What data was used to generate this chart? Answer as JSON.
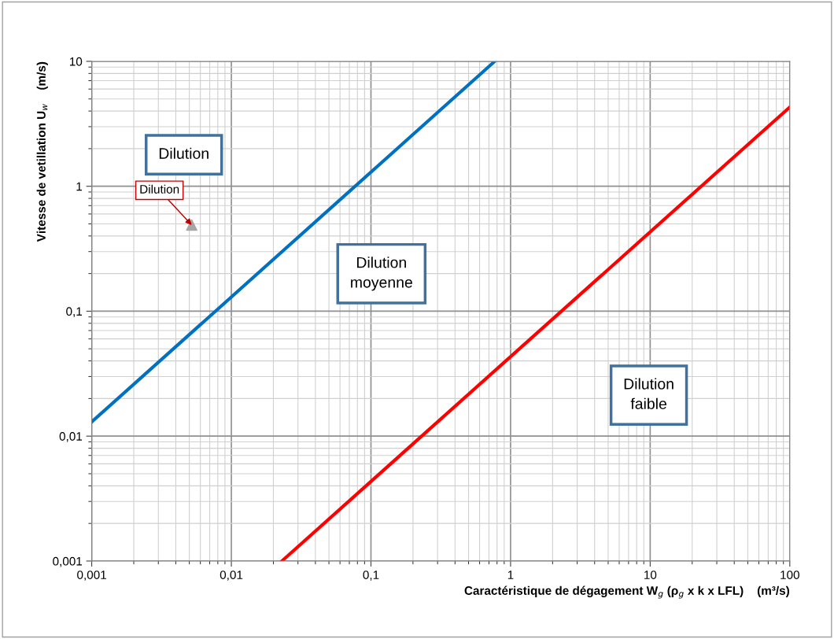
{
  "chart_data": {
    "type": "line",
    "xlabel": "Caractéristique de dégagement W$_{g}$ (ρ$_{g}$ x k x LFL)    (m³/s)",
    "ylabel": "Vitesse de vetillation U$_{w}$    (m/s)",
    "log": "xy",
    "xlim": [
      0.001,
      100
    ],
    "ylim": [
      0.001,
      10
    ],
    "xticks": [
      {
        "value": 0.001,
        "label": "0,001"
      },
      {
        "value": 0.01,
        "label": "0,01"
      },
      {
        "value": 0.1,
        "label": "0,1"
      },
      1,
      10,
      100
    ],
    "yticks": [
      {
        "value": 0.001,
        "label": "0,001"
      },
      {
        "value": 0.01,
        "label": "0,01"
      },
      {
        "value": 0.1,
        "label": "0,1"
      },
      1,
      10
    ],
    "grid": true,
    "series": [
      {
        "color": "#0070c0",
        "x": [
          0.001,
          0.77
        ],
        "values": [
          0.013,
          10
        ]
      },
      {
        "color": "#ff0000",
        "x": [
          0.023,
          100
        ],
        "values": [
          0.001,
          4.3
        ]
      },
      {
        "type": "scatter",
        "marker": "triangle",
        "color": "#a6a6a6",
        "x": [
          0.0052
        ],
        "values": [
          0.49
        ]
      }
    ],
    "annotations": [
      "Dilution",
      "Dilution\nmoyenne",
      "Dilution\nfaible",
      {
        "text": "Dilution",
        "x": 0.0052,
        "y": 0.49
      }
    ]
  }
}
